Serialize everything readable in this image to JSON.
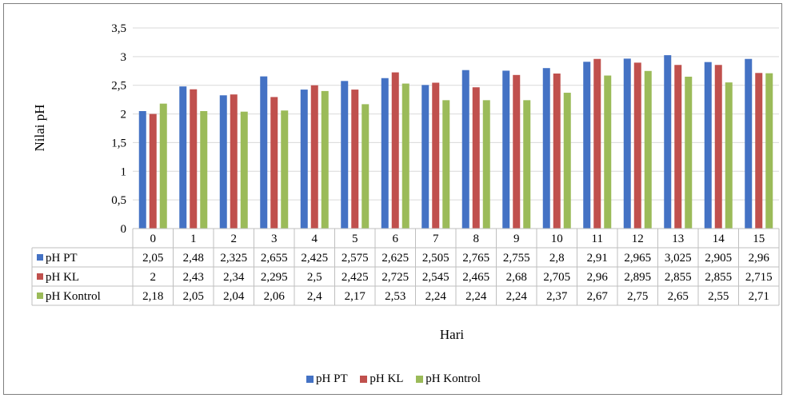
{
  "chart_data": {
    "type": "bar",
    "title": "",
    "xlabel": "Hari",
    "ylabel": "Nilai pH",
    "ylim": [
      0,
      3.5
    ],
    "ytick_labels": [
      "0",
      "0,5",
      "1",
      "1,5",
      "2",
      "2,5",
      "3",
      "3,5"
    ],
    "categories": [
      "0",
      "1",
      "2",
      "3",
      "4",
      "5",
      "6",
      "7",
      "8",
      "9",
      "10",
      "11",
      "12",
      "13",
      "14",
      "15"
    ],
    "grid": true,
    "legend_position": "bottom",
    "data_table": true,
    "series": [
      {
        "name": "pH PT",
        "color": "#4472c4",
        "values": [
          2.05,
          2.48,
          2.325,
          2.655,
          2.425,
          2.575,
          2.625,
          2.505,
          2.765,
          2.755,
          2.8,
          2.91,
          2.965,
          3.025,
          2.905,
          2.96
        ],
        "labels": [
          "2,05",
          "2,48",
          "2,325",
          "2,655",
          "2,425",
          "2,575",
          "2,625",
          "2,505",
          "2,765",
          "2,755",
          "2,8",
          "2,91",
          "2,965",
          "3,025",
          "2,905",
          "2,96"
        ]
      },
      {
        "name": "pH KL",
        "color": "#c0504d",
        "values": [
          2,
          2.43,
          2.34,
          2.295,
          2.5,
          2.425,
          2.725,
          2.545,
          2.465,
          2.68,
          2.705,
          2.96,
          2.895,
          2.855,
          2.855,
          2.715
        ],
        "labels": [
          "2",
          "2,43",
          "2,34",
          "2,295",
          "2,5",
          "2,425",
          "2,725",
          "2,545",
          "2,465",
          "2,68",
          "2,705",
          "2,96",
          "2,895",
          "2,855",
          "2,855",
          "2,715"
        ]
      },
      {
        "name": "pH Kontrol",
        "color": "#9bbb59",
        "values": [
          2.18,
          2.05,
          2.04,
          2.06,
          2.4,
          2.17,
          2.53,
          2.24,
          2.24,
          2.24,
          2.37,
          2.67,
          2.75,
          2.65,
          2.55,
          2.71
        ],
        "labels": [
          "2,18",
          "2,05",
          "2,04",
          "2,06",
          "2,4",
          "2,17",
          "2,53",
          "2,24",
          "2,24",
          "2,24",
          "2,37",
          "2,67",
          "2,75",
          "2,65",
          "2,55",
          "2,71"
        ]
      }
    ]
  }
}
